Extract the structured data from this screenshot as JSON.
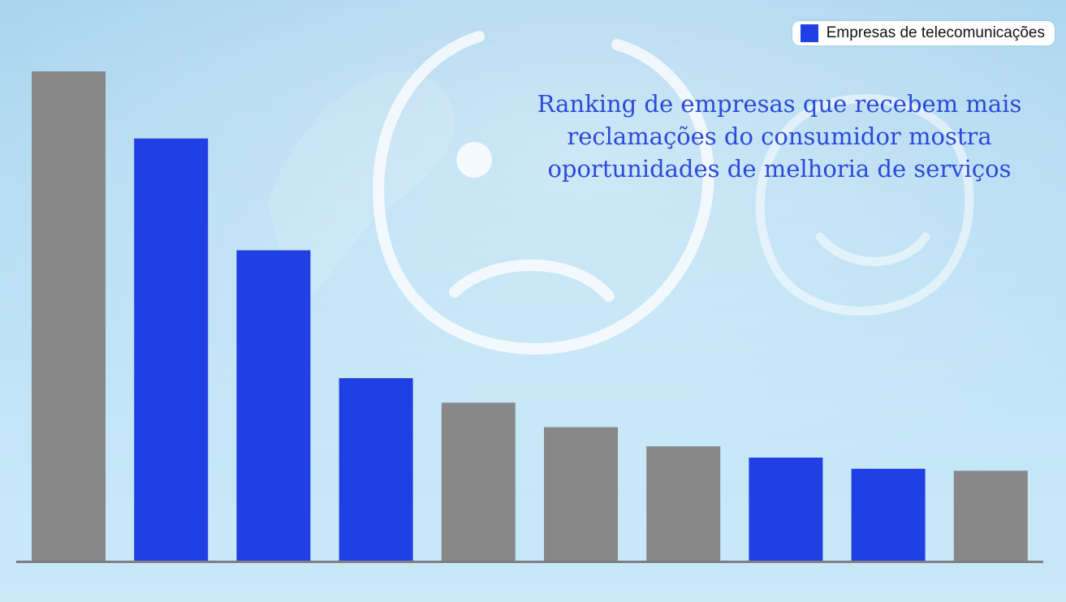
{
  "legend": {
    "label": "Empresas de telecomunicações",
    "color": "#2040e3"
  },
  "title": "Ranking de empresas que recebem mais reclamações do consumidor mostra oportunidades de melhoria de serviços",
  "colors": {
    "telecom": "#2040e3",
    "other": "#888888",
    "axis": "#7f7f7f"
  },
  "chart_data": {
    "type": "bar",
    "title": "Ranking de empresas que recebem mais reclamações do consumidor mostra oportunidades de melhoria de serviços",
    "legend": [
      "Empresas de telecomunicações"
    ],
    "legend_position": "top-right",
    "grid": false,
    "ylim": [
      0,
      100
    ],
    "values": [
      100,
      86.3,
      63.5,
      37.4,
      32.4,
      27.4,
      23.5,
      21.2,
      18.9,
      18.5
    ],
    "telecom": [
      false,
      true,
      true,
      true,
      false,
      false,
      false,
      true,
      true,
      false
    ]
  }
}
